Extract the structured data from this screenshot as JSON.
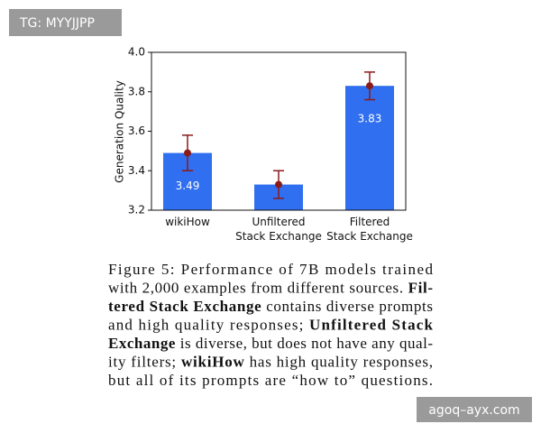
{
  "chart_data": {
    "type": "bar",
    "ylabel": "Generation Quality",
    "categories": [
      "wikiHow",
      "Unfiltered\nStack Exchange",
      "Filtered\nStack Exchange"
    ],
    "values": [
      3.49,
      3.33,
      3.83
    ],
    "errors": [
      0.09,
      0.07,
      0.07
    ],
    "color": "#2f6ff0",
    "error_color": "#8b1a1a",
    "ylim": [
      3.2,
      4.0
    ],
    "yticks": [
      3.2,
      3.4,
      3.6,
      3.8,
      {
        "value": 4.0,
        "label": "4.0"
      }
    ]
  },
  "caption": {
    "lines": [
      [
        {
          "text": "Figure 5:  Performance of 7B models trained"
        }
      ],
      [
        {
          "text": "with 2,000 examples from different sources. "
        },
        {
          "text": "Fil-",
          "bold": true
        }
      ],
      [
        {
          "text": "tered Stack Exchange",
          "bold": true
        },
        {
          "text": " contains diverse prompts"
        }
      ],
      [
        {
          "text": "and high quality responses; "
        },
        {
          "text": "Unfiltered Stack",
          "bold": true
        }
      ],
      [
        {
          "text": "Exchange",
          "bold": true
        },
        {
          "text": " is diverse, but does not have any qual-"
        }
      ],
      [
        {
          "text": "ity filters; "
        },
        {
          "text": "wikiHow",
          "bold": true
        },
        {
          "text": " has high quality responses,"
        }
      ],
      [
        {
          "text": "but all of its prompts are “how to” questions."
        }
      ]
    ]
  },
  "watermark_top": "TG: MYYJJPP",
  "watermark_bottom": "agoq–ayx.com"
}
